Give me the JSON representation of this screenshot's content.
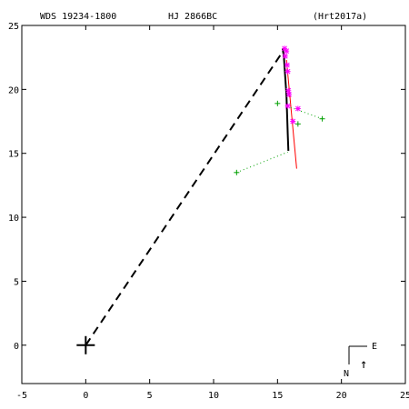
{
  "header": {
    "left": "WDS 19234-1800",
    "center": "HJ 2866BC",
    "right": "(Hrt2017a)"
  },
  "compass": {
    "east_label": "E",
    "north_label": "N",
    "arrow_glyph": "↑"
  },
  "colors": {
    "axes": "#000000",
    "orbit": "#000000",
    "residual": "#ff0000",
    "speckle": "#ff00ff",
    "micrometer": "#00a000"
  },
  "chart_data": {
    "type": "scatter",
    "xlim": [
      -5,
      25
    ],
    "ylim": [
      -3,
      25
    ],
    "x_ticks": [
      -5,
      0,
      5,
      10,
      15,
      20,
      25
    ],
    "y_ticks": [
      0,
      5,
      10,
      15,
      20,
      25
    ],
    "x_tick_labels": [
      "-5",
      "0",
      "5",
      "10",
      "15",
      "20",
      "25"
    ],
    "y_tick_labels": [
      "0",
      "5",
      "10",
      "15",
      "20",
      "25"
    ],
    "primary": [
      0,
      0
    ],
    "line_of_apsides": [
      [
        0,
        0
      ],
      [
        15.3,
        22.8
      ]
    ],
    "orbit_arc": [
      [
        15.4,
        23.2
      ],
      [
        15.5,
        22.5
      ],
      [
        15.6,
        21.0
      ],
      [
        15.7,
        19.5
      ],
      [
        15.75,
        18.0
      ],
      [
        15.8,
        16.5
      ],
      [
        15.85,
        15.2
      ]
    ],
    "residual_line": [
      [
        15.7,
        22.3
      ],
      [
        16.5,
        13.8
      ]
    ],
    "speckle_points": [
      [
        15.55,
        23.2
      ],
      [
        15.7,
        23.0
      ],
      [
        15.6,
        22.6
      ],
      [
        15.75,
        21.9
      ],
      [
        15.8,
        21.4
      ],
      [
        15.85,
        19.9
      ],
      [
        15.9,
        19.6
      ],
      [
        15.8,
        18.7
      ],
      [
        16.6,
        18.5
      ],
      [
        16.2,
        17.5
      ]
    ],
    "micrometer_points": [
      [
        15.0,
        18.9
      ],
      [
        16.6,
        17.3
      ],
      [
        18.5,
        17.7
      ],
      [
        11.8,
        13.5
      ]
    ],
    "micrometer_residuals": [
      [
        [
          18.5,
          17.7
        ],
        [
          16.0,
          18.6
        ]
      ],
      [
        [
          11.8,
          13.5
        ],
        [
          15.8,
          15.1
        ]
      ]
    ]
  }
}
